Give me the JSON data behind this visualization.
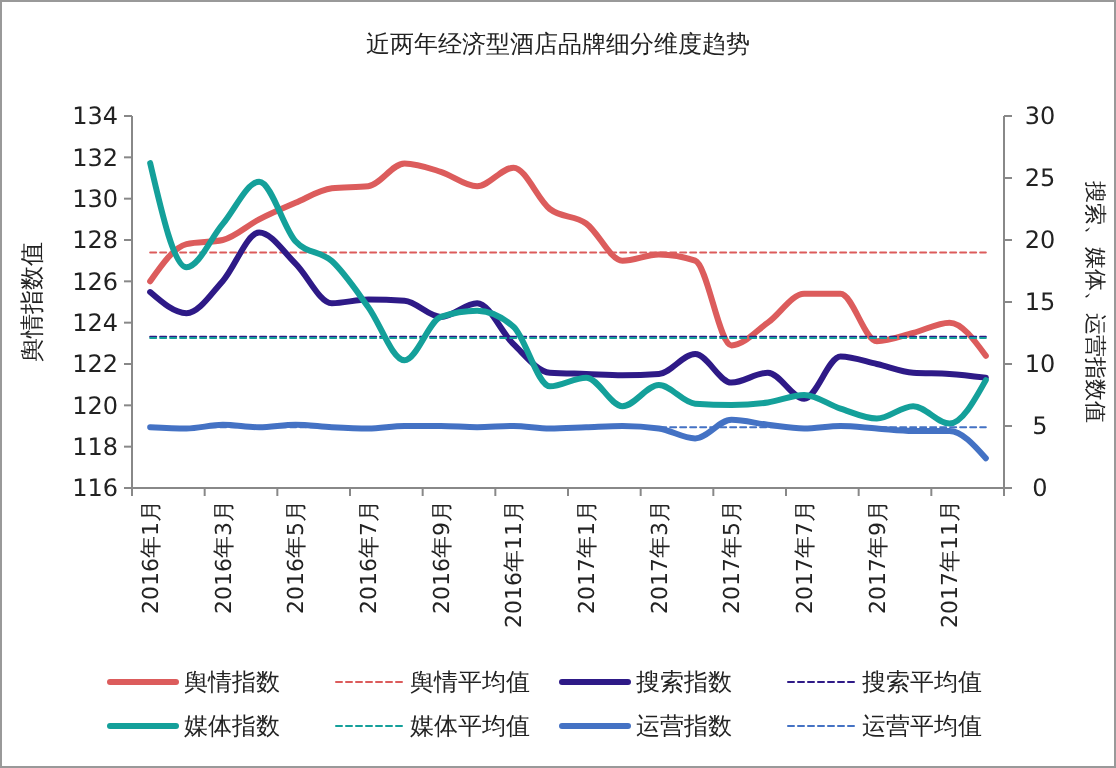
{
  "chart_data": {
    "type": "line",
    "title": "近两年经济型酒店品牌细分维度趋势",
    "ylabel": "舆情指数值",
    "y2label": "搜索、媒体、运营指数值",
    "categories": [
      "2016年1月",
      null,
      "2016年3月",
      null,
      "2016年5月",
      null,
      "2016年7月",
      null,
      "2016年9月",
      null,
      "2016年11月",
      null,
      "2017年1月",
      null,
      "2017年3月",
      null,
      "2017年5月",
      null,
      "2017年7月",
      null,
      "2017年9月",
      null,
      "2017年11月",
      null
    ],
    "ylim": [
      116,
      134
    ],
    "yticks": [
      116,
      118,
      120,
      122,
      124,
      126,
      128,
      130,
      132,
      134
    ],
    "y2lim": [
      0,
      30
    ],
    "y2ticks": [
      0,
      5,
      10,
      15,
      20,
      25,
      30
    ],
    "legend": "bottom",
    "grid": false,
    "series": [
      {
        "name": "舆情指数",
        "color": "#dc5c5c",
        "line_style": "solid",
        "values": [
          126,
          127.8,
          128,
          129,
          129.8,
          130.5,
          130.6,
          131.7,
          131.3,
          130.6,
          131.5,
          129.5,
          128.8,
          127,
          127.3,
          127,
          122.9,
          124,
          125.4,
          125.4,
          123.1,
          123.5,
          124,
          122.4
        ]
      },
      {
        "name": "舆情平均值",
        "color": "#dc5c5c",
        "line_style": "dashed",
        "values": [
          127.4,
          127.4,
          127.4,
          127.4,
          127.4,
          127.4,
          127.4,
          127.4,
          127.4,
          127.4,
          127.4,
          127.4,
          127.4,
          127.4,
          127.4,
          127.4,
          127.4,
          127.4,
          127.4,
          127.4,
          127.4,
          127.4,
          127.4,
          127.4
        ]
      },
      {
        "name": "搜索指数",
        "color": "#2e1a87",
        "axis": "y2",
        "line_style": "solid",
        "values": [
          15.8,
          14.1,
          16.7,
          20.6,
          18.1,
          14.9,
          15.2,
          15.1,
          13.8,
          14.9,
          11.6,
          9.3,
          9.2,
          9.1,
          9.2,
          10.8,
          8.5,
          9.3,
          7.2,
          10.6,
          10,
          9.3,
          9.2,
          8.9
        ]
      },
      {
        "name": "搜索平均值",
        "color": "#2e1a87",
        "axis": "y2",
        "line_style": "dashed",
        "values": [
          12.2,
          12.2,
          12.2,
          12.2,
          12.2,
          12.2,
          12.2,
          12.2,
          12.2,
          12.2,
          12.2,
          12.2,
          12.2,
          12.2,
          12.2,
          12.2,
          12.2,
          12.2,
          12.2,
          12.2,
          12.2,
          12.2,
          12.2,
          12.2
        ]
      },
      {
        "name": "媒体指数",
        "color": "#14a09a",
        "axis": "y2",
        "line_style": "solid",
        "values": [
          26.2,
          17.8,
          21.3,
          24.7,
          19.9,
          18.3,
          14.6,
          10.3,
          13.8,
          14.3,
          13,
          8.2,
          8.9,
          6.6,
          8.3,
          6.8,
          6.7,
          6.9,
          7.5,
          6.4,
          5.6,
          6.6,
          5.2,
          8.7
        ]
      },
      {
        "name": "媒体平均值",
        "color": "#14a09a",
        "axis": "y2",
        "line_style": "dashed",
        "values": [
          12.1,
          12.1,
          12.1,
          12.1,
          12.1,
          12.1,
          12.1,
          12.1,
          12.1,
          12.1,
          12.1,
          12.1,
          12.1,
          12.1,
          12.1,
          12.1,
          12.1,
          12.1,
          12.1,
          12.1,
          12.1,
          12.1,
          12.1,
          12.1
        ]
      },
      {
        "name": "运营指数",
        "color": "#4472c4",
        "axis": "y2",
        "line_style": "solid",
        "values": [
          4.9,
          4.8,
          5.1,
          4.9,
          5.1,
          4.9,
          4.8,
          5,
          5,
          4.9,
          5,
          4.8,
          4.9,
          5,
          4.8,
          4,
          5.5,
          5.1,
          4.8,
          5,
          4.8,
          4.6,
          4.6,
          2.4
        ]
      },
      {
        "name": "运营平均值",
        "color": "#4472c4",
        "axis": "y2",
        "line_style": "dashed",
        "values": [
          4.9,
          4.9,
          4.9,
          4.9,
          4.9,
          4.9,
          4.9,
          4.9,
          4.9,
          4.9,
          4.9,
          4.9,
          4.9,
          4.9,
          4.9,
          4.9,
          4.9,
          4.9,
          4.9,
          4.9,
          4.9,
          4.9,
          4.9,
          4.9
        ]
      }
    ]
  }
}
